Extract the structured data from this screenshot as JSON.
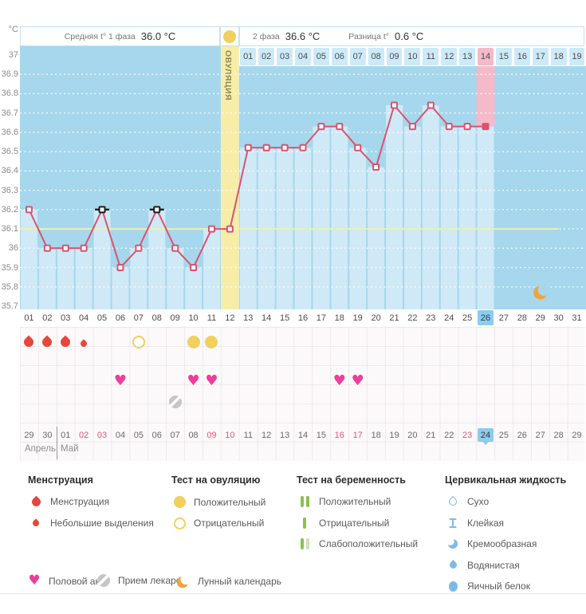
{
  "axis": {
    "unit": "°C",
    "ticks": [
      "37",
      "36.9",
      "36.8",
      "36.7",
      "36.6",
      "36.5",
      "36.4",
      "36.3",
      "36.2",
      "36.1",
      "36",
      "35.9",
      "35.8",
      "35.7"
    ]
  },
  "header": {
    "phase1_label": "Средняя t° 1 фаза",
    "phase1_value": "36.0 °C",
    "phase2_label": "2 фаза",
    "phase2_value": "36.6 °C",
    "diff_label": "Разница t°",
    "diff_value": "0.6 °C",
    "ovulation_label": "ОВУЛЯЦИЯ",
    "dpo_days": [
      "01",
      "02",
      "03",
      "04",
      "05",
      "06",
      "07",
      "08",
      "09",
      "10",
      "11",
      "12",
      "13",
      "14",
      "15",
      "16",
      "17",
      "18",
      "19"
    ],
    "dpo_highlighted": "14"
  },
  "chart_data": {
    "type": "line",
    "ylabel": "°C",
    "ylim": [
      35.7,
      37
    ],
    "days_total": 31,
    "x_cycle_days": [
      1,
      2,
      3,
      4,
      5,
      6,
      7,
      8,
      9,
      10,
      11,
      12,
      13,
      14,
      15,
      16,
      17,
      18,
      19,
      20,
      21,
      22,
      23,
      24,
      25,
      26
    ],
    "temperatures": [
      36.2,
      36.0,
      36.0,
      36.0,
      36.2,
      35.9,
      36.0,
      36.2,
      36.0,
      35.9,
      36.1,
      36.1,
      36.52,
      36.52,
      36.52,
      36.52,
      36.63,
      36.63,
      36.52,
      36.42,
      36.74,
      36.63,
      36.74,
      36.63,
      36.63,
      36.63
    ],
    "black_flag_days": [
      5,
      8
    ],
    "current_day": 26,
    "ovulation_day": 12,
    "coverline": 36.1,
    "coverline_end_day": 30,
    "moon_day": 29,
    "grid": "dotted-white"
  },
  "cycle_days": [
    "01",
    "02",
    "03",
    "04",
    "05",
    "06",
    "07",
    "08",
    "09",
    "10",
    "11",
    "12",
    "13",
    "14",
    "15",
    "16",
    "17",
    "18",
    "19",
    "20",
    "21",
    "22",
    "23",
    "24",
    "25",
    "26",
    "27",
    "28",
    "29",
    "30",
    "31"
  ],
  "current_cycle_day": "26",
  "events": {
    "menstruation_heavy_days": [
      1,
      2,
      3
    ],
    "menstruation_light_days": [
      4
    ],
    "ovulation_test_negative_days": [
      7
    ],
    "ovulation_test_positive_days": [
      10,
      11
    ],
    "intercourse_days": [
      6,
      10,
      11,
      18,
      19
    ],
    "medication_days": [
      9
    ]
  },
  "calendar": {
    "dates": [
      "29",
      "30",
      "01",
      "02",
      "03",
      "04",
      "05",
      "06",
      "07",
      "08",
      "09",
      "10",
      "11",
      "12",
      "13",
      "14",
      "15",
      "16",
      "17",
      "18",
      "19",
      "20",
      "21",
      "22",
      "23",
      "24",
      "25",
      "26",
      "27",
      "28",
      "29"
    ],
    "weekend_indexes": [
      3,
      4,
      10,
      11,
      17,
      18,
      24
    ],
    "today_index": 25,
    "month_left": "Апрель",
    "month_right": "Май"
  },
  "legend": {
    "sections": [
      {
        "title": "Менструация",
        "items": [
          {
            "icon": "drop-large",
            "label": "Менструация"
          },
          {
            "icon": "drop-small",
            "label": "Небольшие выделения"
          }
        ]
      },
      {
        "title": "Тест на овуляцию",
        "items": [
          {
            "icon": "circle-filled",
            "label": "Положительный"
          },
          {
            "icon": "circle-outline",
            "label": "Отрицательный"
          }
        ]
      },
      {
        "title": "Тест на беременность",
        "items": [
          {
            "icon": "bars-positive",
            "label": "Положительный"
          },
          {
            "icon": "bar-negative",
            "label": "Отрицательный"
          },
          {
            "icon": "bars-weak",
            "label": "Слабоположительный"
          }
        ]
      },
      {
        "title": "Цервикальная жидкость",
        "items": [
          {
            "icon": "fluid-dry",
            "label": "Сухо"
          },
          {
            "icon": "fluid-sticky",
            "label": "Клейкая"
          },
          {
            "icon": "fluid-creamy",
            "label": "Кремообразная"
          },
          {
            "icon": "fluid-watery",
            "label": "Водянистая"
          },
          {
            "icon": "fluid-eggwhite",
            "label": "Яичный белок"
          }
        ]
      }
    ],
    "bottom_items": [
      {
        "icon": "heart",
        "label": "Половой акт"
      },
      {
        "icon": "pill",
        "label": "Прием лекарств"
      },
      {
        "icon": "moon",
        "label": "Лунный календарь"
      }
    ]
  },
  "colors": {
    "chart_bg": "#a6d7ec",
    "chart_fill": "#cfe9f7",
    "line": "#d9536f",
    "coverline": "#edf0ad",
    "ovulation_band": "#f7eda9",
    "test_yellow": "#f0d05e",
    "pink_highlight": "#f4bac9",
    "today_blue": "#8ecbec",
    "cell_blue": "#cdeaf8",
    "menses_red": "#e8463c",
    "heart_pink": "#ec3f9b",
    "preg_green": "#8cc14b",
    "fluid_blue": "#7db9e8",
    "moon_orange": "#eea43c",
    "weekend_red": "#e05a72",
    "pill_gray": "#c6c6c6"
  }
}
